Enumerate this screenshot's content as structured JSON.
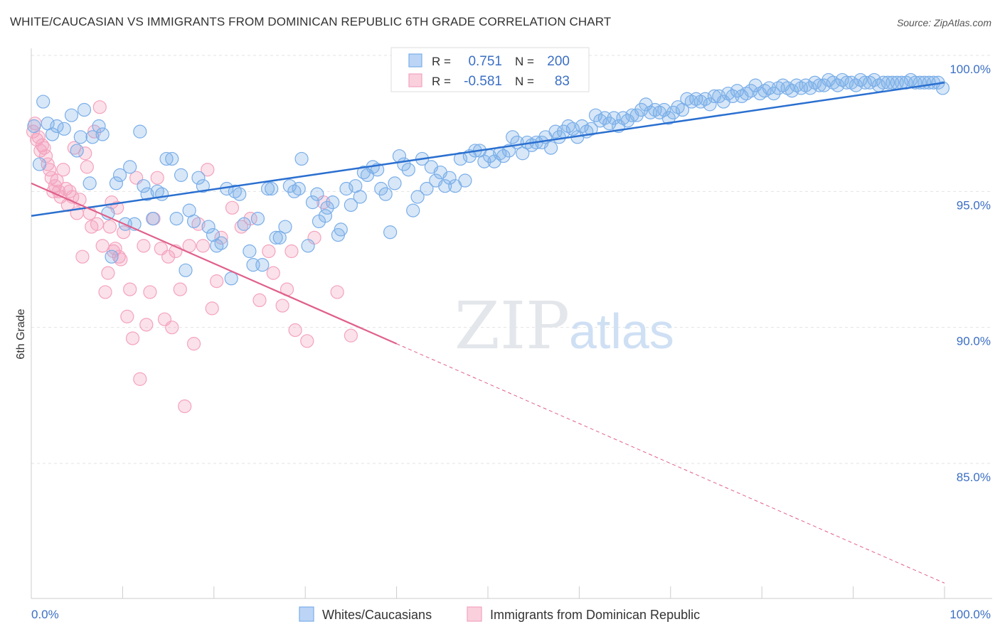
{
  "header": {
    "title": "WHITE/CAUCASIAN VS IMMIGRANTS FROM DOMINICAN REPUBLIC 6TH GRADE CORRELATION CHART",
    "source": "Source: ZipAtlas.com"
  },
  "watermark": {
    "zip": "ZIP",
    "atlas": "atlas"
  },
  "legend_box": {
    "rows": [
      {
        "r_label": "R =",
        "r_value": "0.751",
        "n_label": "N =",
        "n_value": "200"
      },
      {
        "r_label": "R =",
        "r_value": "-0.581",
        "n_label": "N =",
        "n_value": "83"
      }
    ]
  },
  "colors": {
    "blue": "#7aaee8",
    "blue_line": "#2a6fd0",
    "pink": "#f4a3bd",
    "pink_line": "#e0608a",
    "value_text": "#3b6fc4"
  },
  "chart_data": {
    "type": "scatter",
    "title": "WHITE/CAUCASIAN VS IMMIGRANTS FROM DOMINICAN REPUBLIC 6TH GRADE CORRELATION CHART",
    "xlabel": "",
    "ylabel": "6th Grade",
    "xlim": [
      0,
      100
    ],
    "ylim": [
      80.5,
      101.5
    ],
    "x_tick_labels": [
      "0.0%",
      "100.0%"
    ],
    "y_ticks": [
      85,
      90,
      95,
      100
    ],
    "y_tick_labels": [
      "85.0%",
      "90.0%",
      "95.0%",
      "100.0%"
    ],
    "grid": true,
    "legend": {
      "placement": "bottom",
      "entries": [
        "Whites/Caucasians",
        "Immigrants from Dominican Republic"
      ]
    },
    "series": [
      {
        "name": "Whites/Caucasians",
        "color": "#7aaee8",
        "trend": {
          "x": [
            0,
            100
          ],
          "y": [
            94.1,
            99.0
          ]
        },
        "points": [
          [
            0.3,
            97.4
          ],
          [
            0.9,
            96.0
          ],
          [
            1.3,
            98.3
          ],
          [
            1.8,
            97.5
          ],
          [
            2.3,
            97.1
          ],
          [
            2.8,
            97.4
          ],
          [
            3.6,
            97.3
          ],
          [
            4.4,
            97.8
          ],
          [
            5.0,
            96.5
          ],
          [
            5.4,
            97.0
          ],
          [
            5.8,
            98.0
          ],
          [
            6.4,
            95.3
          ],
          [
            6.7,
            97.0
          ],
          [
            7.4,
            97.4
          ],
          [
            7.8,
            97.1
          ],
          [
            8.4,
            94.2
          ],
          [
            8.8,
            92.6
          ],
          [
            9.3,
            95.3
          ],
          [
            9.7,
            95.6
          ],
          [
            10.3,
            93.8
          ],
          [
            10.8,
            95.9
          ],
          [
            11.3,
            93.8
          ],
          [
            11.9,
            97.2
          ],
          [
            12.3,
            95.2
          ],
          [
            12.7,
            94.9
          ],
          [
            13.3,
            94.0
          ],
          [
            13.8,
            95.0
          ],
          [
            14.3,
            94.9
          ],
          [
            14.8,
            96.2
          ],
          [
            15.4,
            96.2
          ],
          [
            15.9,
            94.0
          ],
          [
            16.4,
            95.6
          ],
          [
            16.9,
            92.1
          ],
          [
            17.3,
            94.3
          ],
          [
            17.8,
            93.9
          ],
          [
            18.3,
            95.5
          ],
          [
            18.8,
            95.2
          ],
          [
            19.4,
            93.7
          ],
          [
            19.9,
            93.4
          ],
          [
            20.3,
            93.0
          ],
          [
            20.8,
            93.1
          ],
          [
            21.4,
            95.1
          ],
          [
            21.9,
            91.8
          ],
          [
            22.3,
            95.0
          ],
          [
            22.8,
            94.9
          ],
          [
            23.3,
            93.8
          ],
          [
            23.9,
            92.8
          ],
          [
            24.3,
            92.3
          ],
          [
            24.8,
            94.0
          ],
          [
            25.3,
            92.3
          ],
          [
            25.9,
            95.1
          ],
          [
            26.3,
            95.1
          ],
          [
            26.8,
            93.3
          ],
          [
            27.2,
            93.3
          ],
          [
            27.8,
            93.7
          ],
          [
            28.3,
            95.2
          ],
          [
            28.8,
            95.0
          ],
          [
            29.3,
            95.1
          ],
          [
            29.6,
            96.2
          ],
          [
            30.3,
            93.0
          ],
          [
            30.8,
            94.6
          ],
          [
            31.3,
            94.9
          ],
          [
            31.5,
            93.9
          ],
          [
            32.2,
            94.1
          ],
          [
            32.4,
            94.4
          ],
          [
            33.0,
            94.6
          ],
          [
            33.6,
            93.4
          ],
          [
            33.9,
            93.6
          ],
          [
            34.5,
            95.1
          ],
          [
            35.0,
            94.5
          ],
          [
            35.5,
            95.2
          ],
          [
            36.0,
            94.8
          ],
          [
            36.4,
            95.7
          ],
          [
            36.8,
            95.6
          ],
          [
            37.4,
            95.9
          ],
          [
            37.9,
            95.8
          ],
          [
            38.3,
            95.1
          ],
          [
            38.8,
            94.9
          ],
          [
            39.3,
            93.5
          ],
          [
            39.8,
            95.3
          ],
          [
            40.3,
            96.3
          ],
          [
            40.8,
            96.0
          ],
          [
            41.3,
            95.8
          ],
          [
            41.8,
            94.3
          ],
          [
            42.3,
            94.8
          ],
          [
            42.8,
            96.2
          ],
          [
            43.3,
            95.1
          ],
          [
            43.8,
            95.9
          ],
          [
            44.3,
            95.4
          ],
          [
            44.8,
            95.7
          ],
          [
            45.3,
            95.2
          ],
          [
            45.8,
            95.5
          ],
          [
            46.4,
            95.2
          ],
          [
            47.0,
            96.2
          ],
          [
            47.5,
            95.4
          ],
          [
            48.0,
            96.3
          ],
          [
            48.6,
            96.5
          ],
          [
            49.1,
            96.5
          ],
          [
            49.6,
            96.1
          ],
          [
            50.2,
            96.3
          ],
          [
            50.7,
            96.1
          ],
          [
            51.3,
            96.4
          ],
          [
            51.7,
            96.3
          ],
          [
            52.3,
            96.5
          ],
          [
            52.7,
            97.0
          ],
          [
            53.2,
            96.8
          ],
          [
            53.8,
            96.4
          ],
          [
            54.3,
            96.8
          ],
          [
            54.8,
            96.7
          ],
          [
            55.3,
            96.8
          ],
          [
            55.9,
            96.8
          ],
          [
            56.3,
            97.0
          ],
          [
            56.9,
            96.6
          ],
          [
            57.4,
            97.2
          ],
          [
            57.8,
            97.0
          ],
          [
            58.3,
            97.2
          ],
          [
            58.8,
            97.4
          ],
          [
            59.3,
            97.3
          ],
          [
            59.8,
            97.0
          ],
          [
            60.3,
            97.4
          ],
          [
            60.8,
            97.2
          ],
          [
            61.3,
            97.3
          ],
          [
            61.8,
            97.8
          ],
          [
            62.3,
            97.6
          ],
          [
            62.8,
            97.7
          ],
          [
            63.3,
            97.5
          ],
          [
            63.8,
            97.7
          ],
          [
            64.3,
            97.4
          ],
          [
            64.8,
            97.7
          ],
          [
            65.3,
            97.6
          ],
          [
            65.8,
            97.8
          ],
          [
            66.3,
            97.8
          ],
          [
            66.8,
            98.0
          ],
          [
            67.3,
            98.2
          ],
          [
            67.8,
            97.9
          ],
          [
            68.3,
            98.0
          ],
          [
            68.8,
            97.9
          ],
          [
            69.3,
            98.0
          ],
          [
            69.8,
            97.7
          ],
          [
            70.3,
            97.9
          ],
          [
            70.8,
            98.1
          ],
          [
            71.3,
            98.0
          ],
          [
            71.8,
            98.4
          ],
          [
            72.3,
            98.3
          ],
          [
            72.8,
            98.4
          ],
          [
            73.3,
            98.3
          ],
          [
            73.8,
            98.4
          ],
          [
            74.3,
            98.2
          ],
          [
            74.8,
            98.5
          ],
          [
            75.3,
            98.5
          ],
          [
            75.8,
            98.3
          ],
          [
            76.3,
            98.6
          ],
          [
            76.8,
            98.5
          ],
          [
            77.3,
            98.7
          ],
          [
            77.8,
            98.5
          ],
          [
            78.3,
            98.6
          ],
          [
            78.8,
            98.7
          ],
          [
            79.3,
            98.9
          ],
          [
            79.8,
            98.6
          ],
          [
            80.3,
            98.7
          ],
          [
            80.8,
            98.8
          ],
          [
            81.3,
            98.6
          ],
          [
            81.8,
            98.8
          ],
          [
            82.3,
            98.9
          ],
          [
            82.8,
            98.8
          ],
          [
            83.3,
            98.7
          ],
          [
            83.8,
            98.9
          ],
          [
            84.3,
            98.8
          ],
          [
            84.8,
            98.9
          ],
          [
            85.3,
            98.8
          ],
          [
            85.8,
            99.0
          ],
          [
            86.3,
            98.9
          ],
          [
            86.8,
            98.9
          ],
          [
            87.3,
            99.1
          ],
          [
            87.8,
            99.0
          ],
          [
            88.3,
            98.9
          ],
          [
            88.8,
            99.1
          ],
          [
            89.3,
            99.0
          ],
          [
            89.8,
            99.0
          ],
          [
            90.3,
            98.9
          ],
          [
            90.8,
            99.1
          ],
          [
            91.3,
            99.0
          ],
          [
            91.8,
            99.0
          ],
          [
            92.3,
            99.1
          ],
          [
            92.8,
            98.9
          ],
          [
            93.3,
            99.0
          ],
          [
            93.8,
            99.0
          ],
          [
            94.3,
            99.0
          ],
          [
            94.8,
            99.0
          ],
          [
            95.3,
            99.0
          ],
          [
            95.8,
            99.0
          ],
          [
            96.3,
            99.1
          ],
          [
            96.8,
            99.0
          ],
          [
            97.3,
            99.0
          ],
          [
            97.8,
            99.0
          ],
          [
            98.3,
            99.0
          ],
          [
            98.8,
            99.0
          ],
          [
            99.3,
            99.0
          ],
          [
            99.8,
            98.8
          ]
        ]
      },
      {
        "name": "Immigrants from Dominican Republic",
        "color": "#f4a3bd",
        "trend": {
          "x": [
            0,
            40
          ],
          "y": [
            95.3,
            89.4
          ]
        },
        "trend_extension": {
          "x": [
            40,
            100
          ],
          "y": [
            89.4,
            80.6
          ]
        },
        "points": [
          [
            0.2,
            97.2
          ],
          [
            0.4,
            97.5
          ],
          [
            0.6,
            96.9
          ],
          [
            0.8,
            97.0
          ],
          [
            1.0,
            96.5
          ],
          [
            1.2,
            96.7
          ],
          [
            1.4,
            96.6
          ],
          [
            1.6,
            96.3
          ],
          [
            1.8,
            96.0
          ],
          [
            2.0,
            95.8
          ],
          [
            2.2,
            95.5
          ],
          [
            2.4,
            95.0
          ],
          [
            2.6,
            95.2
          ],
          [
            2.8,
            95.4
          ],
          [
            3.0,
            95.0
          ],
          [
            3.2,
            94.8
          ],
          [
            3.5,
            95.8
          ],
          [
            3.8,
            95.1
          ],
          [
            4.0,
            94.5
          ],
          [
            4.2,
            95.0
          ],
          [
            4.5,
            94.8
          ],
          [
            4.7,
            96.6
          ],
          [
            5.0,
            94.2
          ],
          [
            5.3,
            94.7
          ],
          [
            5.6,
            92.6
          ],
          [
            5.9,
            96.4
          ],
          [
            6.1,
            95.9
          ],
          [
            6.4,
            94.2
          ],
          [
            6.6,
            93.7
          ],
          [
            6.9,
            97.2
          ],
          [
            7.2,
            93.8
          ],
          [
            7.5,
            98.1
          ],
          [
            7.8,
            93.0
          ],
          [
            8.1,
            91.3
          ],
          [
            8.4,
            92.0
          ],
          [
            8.6,
            93.7
          ],
          [
            8.8,
            94.6
          ],
          [
            9.0,
            92.8
          ],
          [
            9.2,
            92.9
          ],
          [
            9.4,
            94.4
          ],
          [
            9.6,
            92.6
          ],
          [
            9.8,
            92.5
          ],
          [
            10.1,
            93.5
          ],
          [
            10.5,
            90.4
          ],
          [
            10.8,
            91.4
          ],
          [
            11.1,
            89.6
          ],
          [
            11.5,
            95.5
          ],
          [
            11.9,
            88.1
          ],
          [
            12.3,
            93.0
          ],
          [
            12.6,
            90.1
          ],
          [
            13.0,
            91.3
          ],
          [
            13.4,
            94.0
          ],
          [
            13.8,
            95.5
          ],
          [
            14.2,
            92.9
          ],
          [
            14.6,
            90.3
          ],
          [
            15.0,
            92.6
          ],
          [
            15.4,
            90.0
          ],
          [
            15.8,
            92.8
          ],
          [
            16.3,
            91.4
          ],
          [
            16.8,
            87.1
          ],
          [
            17.3,
            93.0
          ],
          [
            17.8,
            89.4
          ],
          [
            18.3,
            93.8
          ],
          [
            18.8,
            93.0
          ],
          [
            19.3,
            95.8
          ],
          [
            19.8,
            90.7
          ],
          [
            20.3,
            91.7
          ],
          [
            20.8,
            93.3
          ],
          [
            22.0,
            94.4
          ],
          [
            23.0,
            93.7
          ],
          [
            24.0,
            94.0
          ],
          [
            25.0,
            91.0
          ],
          [
            26.0,
            92.8
          ],
          [
            26.5,
            92.0
          ],
          [
            27.5,
            90.8
          ],
          [
            28.0,
            91.4
          ],
          [
            28.5,
            92.8
          ],
          [
            28.9,
            89.9
          ],
          [
            30.2,
            89.5
          ],
          [
            31.0,
            93.3
          ],
          [
            32.0,
            94.6
          ],
          [
            33.5,
            91.3
          ],
          [
            35.0,
            89.7
          ]
        ]
      }
    ]
  }
}
